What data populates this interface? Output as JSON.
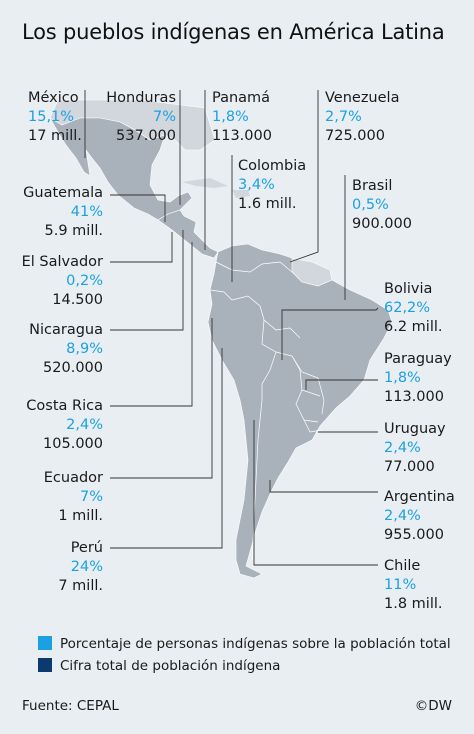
{
  "title": "Los pueblos indígenas en América Latina",
  "countries": {
    "mexico": {
      "name": "México",
      "pct": "15,1%",
      "pop": "17 mill."
    },
    "honduras": {
      "name": "Honduras",
      "pct": "7%",
      "pop": "537.000"
    },
    "panama": {
      "name": "Panamá",
      "pct": "1,8%",
      "pop": "113.000"
    },
    "venezuela": {
      "name": "Venezuela",
      "pct": "2,7%",
      "pop": "725.000"
    },
    "colombia": {
      "name": "Colombia",
      "pct": "3,4%",
      "pop": "1.6 mill."
    },
    "brasil": {
      "name": "Brasil",
      "pct": "0,5%",
      "pop": "900.000"
    },
    "guatemala": {
      "name": "Guatemala",
      "pct": "41%",
      "pop": "5.9 mill."
    },
    "el_salvador": {
      "name": "El Salvador",
      "pct": "0,2%",
      "pop": "14.500"
    },
    "nicaragua": {
      "name": "Nicaragua",
      "pct": "8,9%",
      "pop": "520.000"
    },
    "costa_rica": {
      "name": "Costa Rica",
      "pct": "2,4%",
      "pop": "105.000"
    },
    "ecuador": {
      "name": "Ecuador",
      "pct": "7%",
      "pop": "1 mill."
    },
    "peru": {
      "name": "Perú",
      "pct": "24%",
      "pop": "7 mill."
    },
    "bolivia": {
      "name": "Bolivia",
      "pct": "62,2%",
      "pop": "6.2 mill."
    },
    "paraguay": {
      "name": "Paraguay",
      "pct": "1,8%",
      "pop": "113.000"
    },
    "uruguay": {
      "name": "Uruguay",
      "pct": "2,4%",
      "pop": "77.000"
    },
    "argentina": {
      "name": "Argentina",
      "pct": "2,4%",
      "pop": "955.000"
    },
    "chile": {
      "name": "Chile",
      "pct": "11%",
      "pop": "1.8 mill."
    }
  },
  "legend": {
    "pct_label": "Porcentaje de personas indígenas sobre la población total",
    "pop_label": "Cifra total de población indígena",
    "pct_color": "#1ba1e2",
    "pop_color": "#0b3a6e"
  },
  "footer": {
    "source": "Fuente: CEPAL",
    "credit": "©DW"
  },
  "colors": {
    "background": "#e9eef2",
    "land_highlight": "#a9b2bb",
    "land_other": "#d1d7dc",
    "leader": "#333333"
  }
}
